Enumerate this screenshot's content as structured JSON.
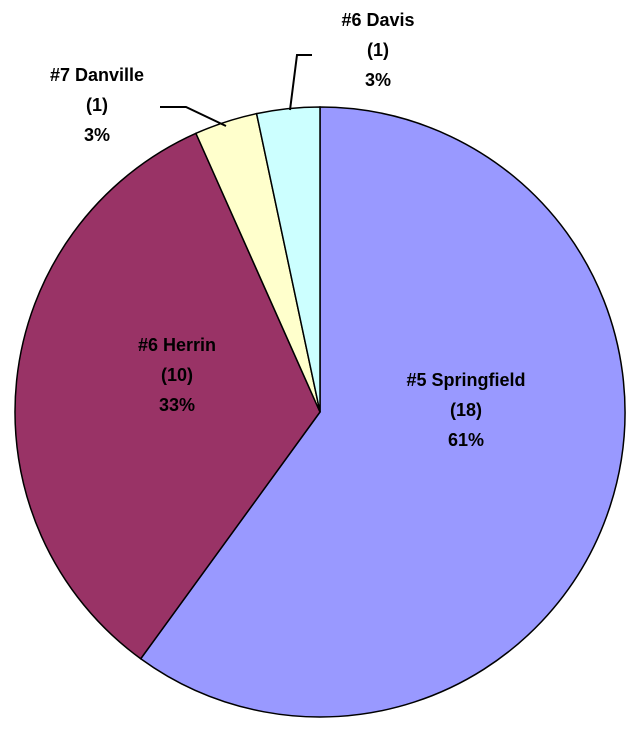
{
  "chart_data": {
    "type": "pie",
    "categories": [
      "#5 Springfield",
      "#6 Herrin",
      "#7 Danville",
      "#6 Davis"
    ],
    "values": [
      18,
      10,
      1,
      1
    ],
    "value_labels": [
      "(18)",
      "(10)",
      "(1)",
      "(1)"
    ],
    "percent_labels": [
      "61%",
      "33%",
      "3%",
      "3%"
    ],
    "colors": [
      "#9999ff",
      "#993366",
      "#ffffcc",
      "#ccffff"
    ]
  }
}
